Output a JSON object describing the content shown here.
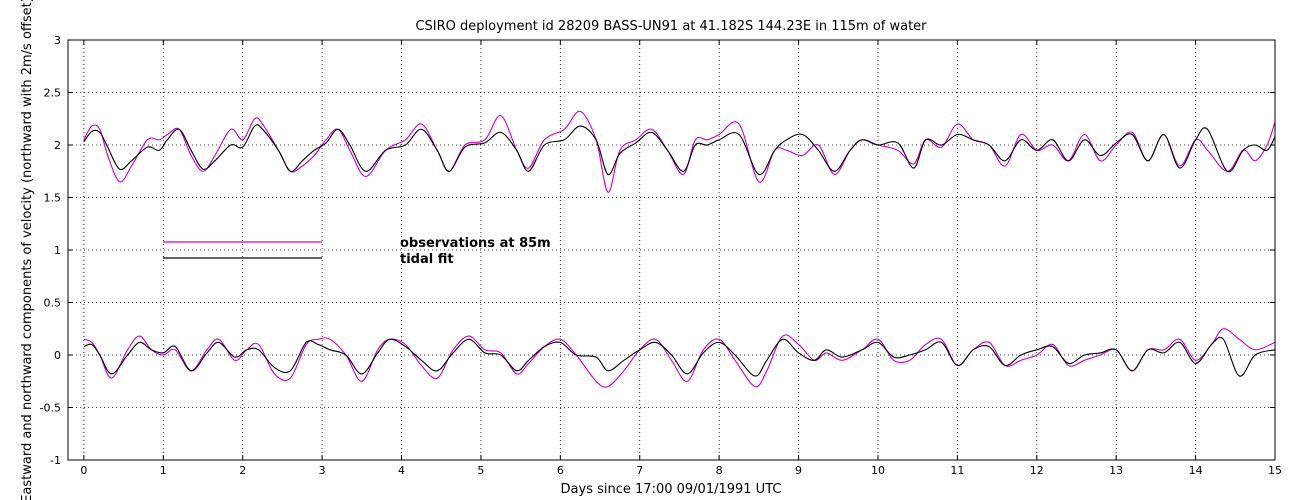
{
  "chart_data": {
    "type": "line",
    "title": "CSIRO deployment id 28209 BASS-UN91 at 41.182S 144.23E in 115m of water",
    "xlabel": "Days since 17:00 09/01/1991 UTC",
    "ylabel": "Eastward  and northward components of velocity  (northward with 2m/s offset)",
    "xlim": [
      -0.2,
      15
    ],
    "ylim": [
      -1,
      3
    ],
    "xticks": [
      0,
      1,
      2,
      3,
      4,
      5,
      6,
      7,
      8,
      9,
      10,
      11,
      12,
      13,
      14,
      15
    ],
    "yticks": [
      -1,
      -0.5,
      0,
      0.5,
      1,
      1.5,
      2,
      2.5,
      3
    ],
    "grid": true,
    "colors": {
      "observations": "#cc00cc",
      "tidal_fit": "#000000"
    },
    "legend": [
      {
        "name": "observations at 85m",
        "color": "#cc00cc"
      },
      {
        "name": "tidal fit",
        "color": "#000000"
      }
    ],
    "legend_location": "center-left",
    "series": [
      {
        "name": "observations at 85m (northward + 2 m/s)",
        "color": "#cc00cc",
        "x": [
          0,
          0.1,
          0.2,
          0.3,
          0.45,
          0.6,
          0.8,
          0.95,
          1.05,
          1.2,
          1.35,
          1.5,
          1.65,
          1.85,
          2.0,
          2.15,
          2.25,
          2.45,
          2.6,
          2.75,
          2.9,
          3.05,
          3.2,
          3.35,
          3.55,
          3.8,
          4.05,
          4.25,
          4.45,
          4.6,
          4.8,
          5.05,
          5.25,
          5.45,
          5.6,
          5.8,
          6.05,
          6.25,
          6.45,
          6.6,
          6.75,
          6.95,
          7.15,
          7.35,
          7.55,
          7.7,
          7.85,
          8.0,
          8.25,
          8.5,
          8.7,
          8.85,
          9.05,
          9.25,
          9.45,
          9.65,
          9.8,
          10.0,
          10.25,
          10.45,
          10.6,
          10.8,
          11.0,
          11.2,
          11.4,
          11.6,
          11.8,
          12.0,
          12.2,
          12.4,
          12.6,
          12.8,
          13.0,
          13.2,
          13.4,
          13.6,
          13.8,
          14.0,
          14.15,
          14.4,
          14.6,
          14.75,
          14.9,
          15.0
        ],
        "y": [
          2.05,
          2.18,
          2.15,
          1.9,
          1.65,
          1.8,
          2.05,
          2.05,
          2.1,
          2.15,
          1.9,
          1.75,
          1.9,
          2.15,
          2.05,
          2.25,
          2.2,
          1.95,
          1.75,
          1.8,
          1.9,
          2.05,
          2.15,
          1.95,
          1.7,
          1.95,
          2.05,
          2.2,
          1.95,
          1.75,
          2.0,
          2.05,
          2.28,
          1.95,
          1.78,
          2.05,
          2.15,
          2.32,
          2.05,
          1.55,
          1.95,
          2.05,
          2.15,
          1.95,
          1.72,
          2.05,
          2.05,
          2.1,
          2.2,
          1.65,
          1.95,
          1.95,
          1.9,
          2.0,
          1.72,
          1.95,
          2.05,
          2.0,
          1.95,
          1.82,
          2.05,
          1.98,
          2.2,
          2.05,
          2.0,
          1.8,
          2.1,
          1.95,
          2.0,
          1.85,
          2.1,
          1.85,
          2.0,
          2.12,
          1.85,
          2.1,
          1.8,
          2.05,
          1.95,
          1.75,
          1.95,
          1.85,
          2.0,
          2.22
        ]
      },
      {
        "name": "tidal fit (northward + 2 m/s)",
        "color": "#000000",
        "x": [
          0,
          0.1,
          0.2,
          0.3,
          0.45,
          0.6,
          0.8,
          0.95,
          1.05,
          1.2,
          1.35,
          1.5,
          1.65,
          1.85,
          2.0,
          2.15,
          2.25,
          2.45,
          2.6,
          2.75,
          2.9,
          3.05,
          3.2,
          3.35,
          3.55,
          3.8,
          4.05,
          4.25,
          4.45,
          4.6,
          4.8,
          5.05,
          5.25,
          5.45,
          5.6,
          5.8,
          6.05,
          6.25,
          6.45,
          6.6,
          6.75,
          6.95,
          7.15,
          7.35,
          7.55,
          7.7,
          7.85,
          8.0,
          8.25,
          8.5,
          8.7,
          8.85,
          9.05,
          9.25,
          9.45,
          9.65,
          9.8,
          10.0,
          10.25,
          10.45,
          10.6,
          10.8,
          11.0,
          11.2,
          11.4,
          11.6,
          11.8,
          12.0,
          12.2,
          12.4,
          12.6,
          12.8,
          13.0,
          13.2,
          13.4,
          13.6,
          13.8,
          14.0,
          14.15,
          14.4,
          14.6,
          14.75,
          14.9,
          15.0
        ],
        "y": [
          2.03,
          2.13,
          2.12,
          1.98,
          1.77,
          1.85,
          1.98,
          1.95,
          2.05,
          2.15,
          1.95,
          1.77,
          1.85,
          2.0,
          1.98,
          2.18,
          2.15,
          1.95,
          1.75,
          1.85,
          1.95,
          2.02,
          2.15,
          2.0,
          1.75,
          1.95,
          2.0,
          2.15,
          1.95,
          1.75,
          1.98,
          2.02,
          2.12,
          1.95,
          1.75,
          2.0,
          2.05,
          2.18,
          2.05,
          1.72,
          1.92,
          2.02,
          2.12,
          1.95,
          1.75,
          2.0,
          2.0,
          2.05,
          2.1,
          1.72,
          1.95,
          2.05,
          2.1,
          1.95,
          1.75,
          1.95,
          2.05,
          2.0,
          2.02,
          1.78,
          2.05,
          2.0,
          2.1,
          2.05,
          2.0,
          1.85,
          2.05,
          1.95,
          2.05,
          1.85,
          2.05,
          1.9,
          2.02,
          2.1,
          1.85,
          2.1,
          1.78,
          2.05,
          2.15,
          1.75,
          1.95,
          2.0,
          1.95,
          2.08
        ]
      },
      {
        "name": "observations at 85m (eastward)",
        "color": "#cc00cc",
        "x": [
          0,
          0.1,
          0.2,
          0.35,
          0.55,
          0.7,
          0.85,
          1.0,
          1.15,
          1.35,
          1.55,
          1.7,
          1.9,
          2.05,
          2.2,
          2.4,
          2.6,
          2.8,
          2.95,
          3.1,
          3.3,
          3.5,
          3.7,
          3.85,
          4.05,
          4.25,
          4.45,
          4.65,
          4.85,
          5.05,
          5.25,
          5.45,
          5.6,
          5.8,
          6.0,
          6.2,
          6.45,
          6.6,
          6.8,
          7.0,
          7.2,
          7.4,
          7.6,
          7.8,
          8.0,
          8.2,
          8.45,
          8.6,
          8.8,
          9.0,
          9.2,
          9.35,
          9.55,
          9.8,
          10.0,
          10.2,
          10.4,
          10.6,
          10.8,
          11.0,
          11.2,
          11.4,
          11.6,
          11.8,
          12.0,
          12.2,
          12.4,
          12.6,
          12.8,
          13.0,
          13.2,
          13.4,
          13.6,
          13.8,
          14.0,
          14.2,
          14.35,
          14.55,
          14.75,
          15.0
        ],
        "y": [
          0.15,
          0.12,
          0.0,
          -0.22,
          0.05,
          0.18,
          0.05,
          0.0,
          0.05,
          -0.15,
          0.05,
          0.15,
          -0.05,
          0.05,
          0.1,
          -0.18,
          -0.22,
          0.1,
          0.15,
          0.15,
          0.0,
          -0.25,
          0.05,
          0.15,
          0.1,
          -0.1,
          -0.22,
          0.05,
          0.18,
          0.05,
          0.02,
          -0.18,
          -0.08,
          0.08,
          0.15,
          0.0,
          -0.25,
          -0.3,
          -0.15,
          0.05,
          0.15,
          -0.05,
          -0.25,
          0.05,
          0.15,
          -0.05,
          -0.3,
          -0.15,
          0.18,
          0.1,
          -0.05,
          0.02,
          -0.05,
          0.05,
          0.15,
          -0.05,
          -0.05,
          0.1,
          0.15,
          -0.1,
          0.05,
          0.12,
          -0.1,
          -0.05,
          0.0,
          0.1,
          -0.1,
          -0.05,
          0.0,
          0.05,
          -0.15,
          0.05,
          0.05,
          0.15,
          -0.05,
          0.1,
          0.25,
          0.15,
          0.05,
          0.12
        ]
      },
      {
        "name": "tidal fit (eastward)",
        "color": "#000000",
        "x": [
          0,
          0.1,
          0.2,
          0.35,
          0.55,
          0.7,
          0.85,
          1.0,
          1.15,
          1.35,
          1.55,
          1.7,
          1.9,
          2.05,
          2.2,
          2.4,
          2.6,
          2.8,
          2.95,
          3.1,
          3.3,
          3.5,
          3.7,
          3.85,
          4.05,
          4.25,
          4.45,
          4.65,
          4.85,
          5.05,
          5.25,
          5.45,
          5.6,
          5.8,
          6.0,
          6.2,
          6.45,
          6.6,
          6.8,
          7.0,
          7.2,
          7.4,
          7.6,
          7.8,
          8.0,
          8.2,
          8.45,
          8.6,
          8.8,
          9.0,
          9.2,
          9.35,
          9.55,
          9.8,
          10.0,
          10.2,
          10.4,
          10.6,
          10.8,
          11.0,
          11.2,
          11.4,
          11.6,
          11.8,
          12.0,
          12.2,
          12.4,
          12.6,
          12.8,
          13.0,
          13.2,
          13.4,
          13.6,
          13.8,
          14.0,
          14.2,
          14.35,
          14.55,
          14.75,
          15.0
        ],
        "y": [
          0.08,
          0.1,
          0.0,
          -0.18,
          0.0,
          0.12,
          0.05,
          0.02,
          0.08,
          -0.15,
          0.02,
          0.12,
          -0.02,
          0.05,
          0.05,
          -0.12,
          -0.15,
          0.12,
          0.1,
          0.05,
          0.0,
          -0.18,
          0.02,
          0.15,
          0.08,
          -0.05,
          -0.15,
          0.02,
          0.15,
          0.02,
          0.0,
          -0.15,
          -0.05,
          0.08,
          0.12,
          0.0,
          -0.02,
          -0.15,
          -0.05,
          0.05,
          0.12,
          0.0,
          -0.18,
          0.02,
          0.12,
          0.0,
          -0.2,
          -0.05,
          0.15,
          0.02,
          -0.05,
          0.05,
          -0.02,
          0.05,
          0.12,
          -0.02,
          0.0,
          0.05,
          0.12,
          -0.1,
          0.05,
          0.08,
          -0.1,
          0.0,
          0.05,
          0.08,
          -0.08,
          0.0,
          0.02,
          0.05,
          -0.15,
          0.05,
          0.02,
          0.12,
          -0.08,
          0.1,
          0.15,
          -0.2,
          0.0,
          0.05
        ]
      }
    ]
  }
}
